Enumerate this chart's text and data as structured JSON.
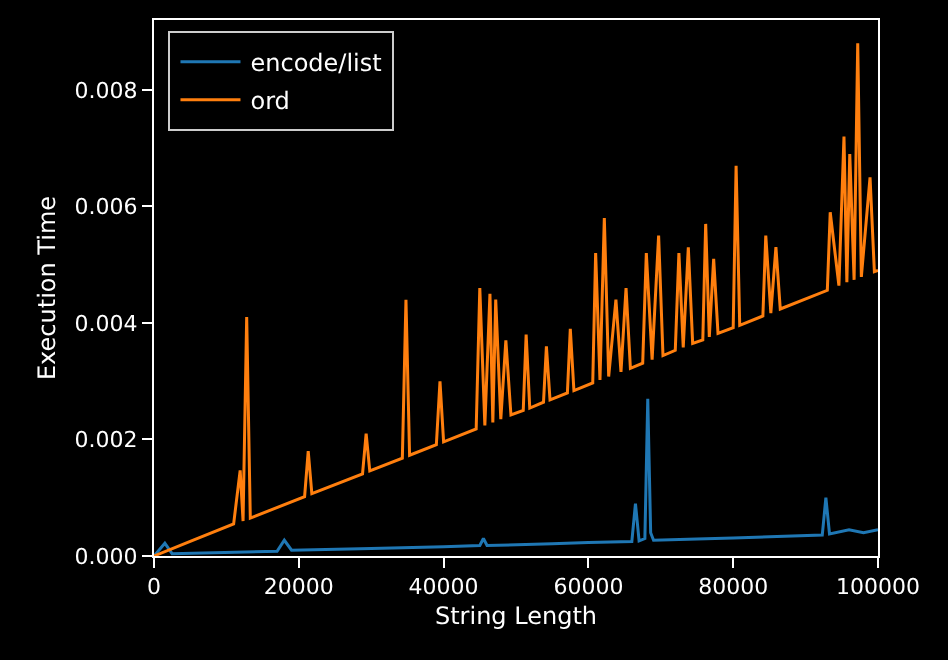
{
  "chart_data": {
    "type": "line",
    "xlabel": "String Length",
    "ylabel": "Execution Time",
    "xlim": [
      0,
      100000
    ],
    "ylim": [
      0,
      0.0092
    ],
    "xticks": [
      0,
      20000,
      40000,
      60000,
      80000,
      100000
    ],
    "yticks": [
      {
        "value": 0,
        "label": "0.000"
      },
      {
        "value": 0.002,
        "label": "0.002"
      },
      {
        "value": 0.004,
        "label": "0.004"
      },
      {
        "value": 0.006,
        "label": "0.006"
      },
      {
        "value": 0.008,
        "label": "0.008"
      }
    ],
    "legend": "top left",
    "grid": false,
    "series": [
      {
        "name": "encode/list",
        "color": "#1f77b4",
        "x": [
          0,
          1500,
          2500,
          17000,
          18000,
          19000,
          30000,
          40000,
          45000,
          45500,
          46000,
          55000,
          60000,
          66000,
          66500,
          67000,
          67800,
          68200,
          68600,
          69000,
          75000,
          80000,
          85000,
          92300,
          92800,
          93300,
          96000,
          98000,
          100000
        ],
        "values": [
          0,
          0.00022,
          4e-05,
          8e-05,
          0.00027,
          0.0001,
          0.00013,
          0.00016,
          0.00018,
          0.0003,
          0.00018,
          0.00021,
          0.00023,
          0.00025,
          0.0009,
          0.00026,
          0.0003,
          0.0027,
          0.0004,
          0.00027,
          0.00029,
          0.00031,
          0.00033,
          0.00036,
          0.001,
          0.00038,
          0.00045,
          0.0004,
          0.00045
        ]
      },
      {
        "name": "ord",
        "color": "#ff7f0e",
        "x": [
          0,
          5000,
          11000,
          11900,
          12300,
          12800,
          13300,
          20800,
          21300,
          21800,
          28800,
          29300,
          29800,
          34300,
          34800,
          35300,
          39000,
          39500,
          40000,
          44500,
          45000,
          45700,
          46400,
          46800,
          47200,
          47900,
          48600,
          49300,
          51000,
          51400,
          51900,
          53800,
          54200,
          54700,
          57100,
          57500,
          58000,
          60600,
          61000,
          61600,
          62200,
          62800,
          63800,
          64500,
          65200,
          65800,
          67500,
          68000,
          68800,
          69700,
          70300,
          72000,
          72500,
          73100,
          73800,
          74400,
          75800,
          76200,
          76700,
          77300,
          77900,
          80000,
          80400,
          80900,
          84100,
          84500,
          85200,
          85900,
          86500,
          93000,
          93400,
          94600,
          95300,
          95700,
          96100,
          96700,
          97200,
          97700,
          98900,
          99500,
          100000
        ],
        "values": [
          0,
          0.00025,
          0.00055,
          0.00147,
          0.0006,
          0.0041,
          0.00065,
          0.00102,
          0.0018,
          0.00107,
          0.00141,
          0.0021,
          0.00146,
          0.00168,
          0.0044,
          0.00173,
          0.00191,
          0.003,
          0.00196,
          0.00218,
          0.0046,
          0.00224,
          0.0045,
          0.00229,
          0.0044,
          0.00235,
          0.0037,
          0.00242,
          0.0025,
          0.0038,
          0.00254,
          0.00264,
          0.0036,
          0.00268,
          0.0028,
          0.0039,
          0.00284,
          0.00297,
          0.0052,
          0.00302,
          0.0058,
          0.00308,
          0.0044,
          0.00316,
          0.0046,
          0.00322,
          0.00331,
          0.0052,
          0.00337,
          0.0055,
          0.00344,
          0.00353,
          0.0052,
          0.00358,
          0.0053,
          0.00365,
          0.00371,
          0.0057,
          0.00376,
          0.0051,
          0.00382,
          0.00392,
          0.0067,
          0.00396,
          0.00412,
          0.0055,
          0.00417,
          0.0053,
          0.00424,
          0.00456,
          0.0059,
          0.00464,
          0.0072,
          0.0047,
          0.0069,
          0.00474,
          0.0088,
          0.00479,
          0.0065,
          0.00488,
          0.0049
        ]
      }
    ]
  }
}
